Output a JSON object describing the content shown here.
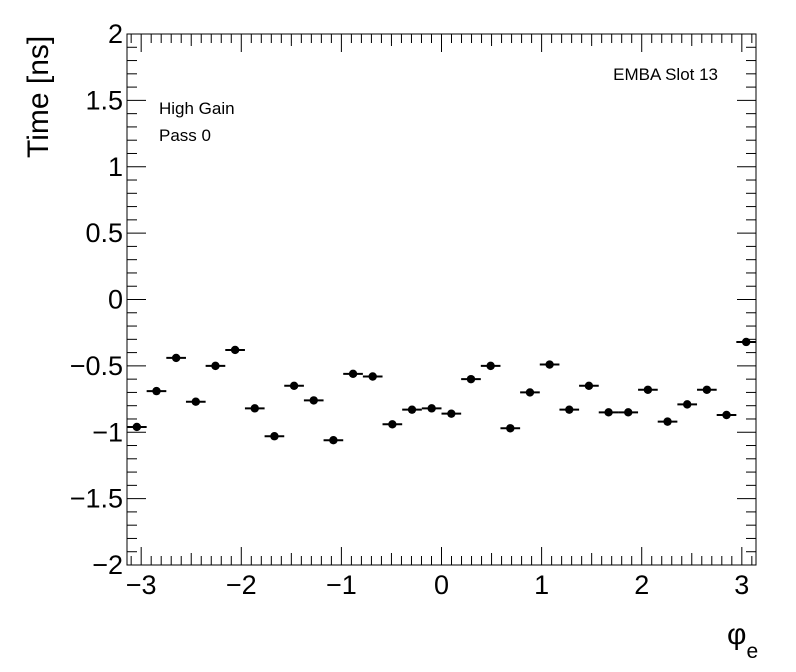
{
  "chart_data": {
    "type": "scatter",
    "xlabel_symbol": "φ",
    "xlabel_sub": "e",
    "ylabel": "Time [ns]",
    "xlim": [
      -3.1416,
      3.1416
    ],
    "ylim": [
      -2,
      2
    ],
    "x_ticks": [
      -3,
      -2,
      -1,
      0,
      1,
      2,
      3
    ],
    "x_tick_labels": [
      "−3",
      "−2",
      "−1",
      "0",
      "1",
      "2",
      "3"
    ],
    "y_ticks": [
      -2,
      -1.5,
      -1,
      -0.5,
      0,
      0.5,
      1,
      1.5,
      2
    ],
    "y_tick_labels": [
      "−2",
      "−1.5",
      "−1",
      "−0.5",
      "0",
      "0.5",
      "1",
      "1.5",
      "2"
    ],
    "bin_width": 0.19635,
    "grid": false,
    "legend": "none",
    "annotations": {
      "label": "EMBA Slot 13",
      "gain": "High Gain",
      "pass": "Pass 0"
    },
    "marker_color": "#000000",
    "series": [
      {
        "x": [
          -3.0434,
          -2.8471,
          -2.6507,
          -2.4544,
          -2.258,
          -2.0617,
          -1.8653,
          -1.669,
          -1.4726,
          -1.2763,
          -1.0799,
          -0.8836,
          -0.6872,
          -0.4909,
          -0.2945,
          -0.0982,
          0.0982,
          0.2945,
          0.4909,
          0.6872,
          0.8836,
          1.0799,
          1.2763,
          1.4726,
          1.669,
          1.8653,
          2.0617,
          2.258,
          2.4544,
          2.6507,
          2.8471,
          3.0434
        ],
        "values": [
          -0.96,
          -0.69,
          -0.44,
          -0.77,
          -0.5,
          -0.38,
          -0.82,
          -1.03,
          -0.65,
          -0.76,
          -1.06,
          -0.56,
          -0.58,
          -0.94,
          -0.83,
          -0.82,
          -0.86,
          -0.6,
          -0.5,
          -0.97,
          -0.7,
          -0.49,
          -0.83,
          -0.65,
          -0.85,
          -0.85,
          -0.68,
          -0.92,
          -0.79,
          -0.68,
          -0.87,
          -0.32
        ]
      }
    ]
  }
}
